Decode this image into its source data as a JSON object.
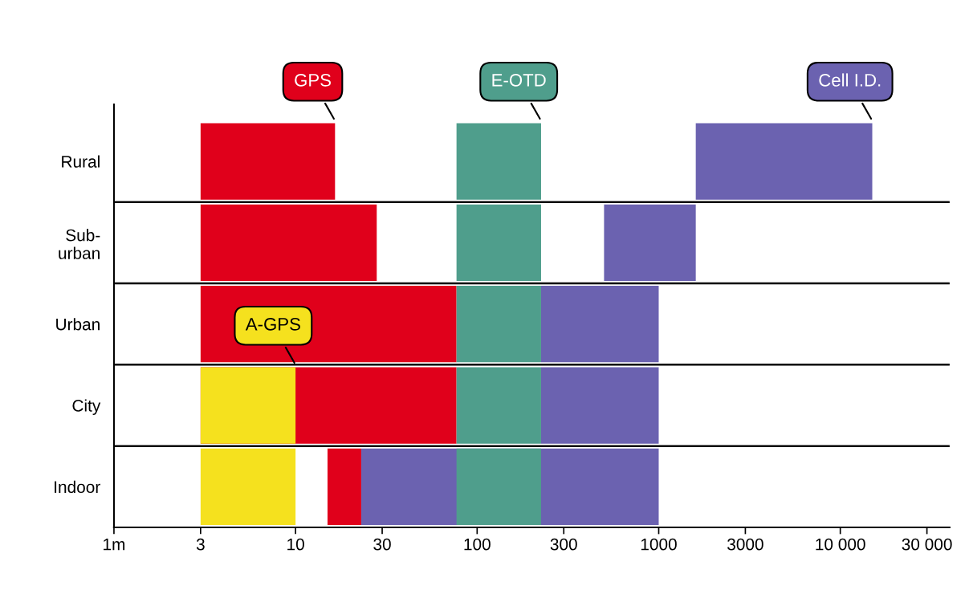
{
  "chart_data": {
    "type": "bar",
    "orientation": "horizontal",
    "categories": [
      "Rural",
      "Sub-\nurban",
      "Urban",
      "City",
      "Indoor"
    ],
    "series": [
      {
        "name": "Cell I.D.",
        "color": "#6b62b0",
        "base": [
          1600,
          500,
          225,
          225,
          23
        ],
        "values": [
          13400,
          1100,
          775,
          775,
          977
        ]
      },
      {
        "name": "GPS",
        "color": "#e0001b",
        "base": [
          3,
          3,
          3,
          3,
          15
        ],
        "values": [
          13.5,
          25,
          74,
          74,
          8
        ]
      },
      {
        "name": "A-GPS",
        "color": "#f5e11e",
        "base": [
          null,
          null,
          null,
          3,
          3
        ],
        "values": [
          null,
          null,
          null,
          7,
          7
        ]
      },
      {
        "name": "E-OTD",
        "color": "#4f9e8c",
        "base": [
          77,
          77,
          77,
          77,
          77
        ],
        "values": [
          148,
          148,
          148,
          148,
          148
        ]
      }
    ],
    "log": "x",
    "xlim": [
      1,
      40000
    ],
    "xticks": [
      {
        "value": 1,
        "label": "1m"
      },
      3,
      10,
      30,
      100,
      300,
      1000,
      3000,
      {
        "value": 10000,
        "label": "10 000"
      },
      {
        "value": 30000,
        "label": "30 000"
      }
    ],
    "grid": "y",
    "legend": false
  }
}
